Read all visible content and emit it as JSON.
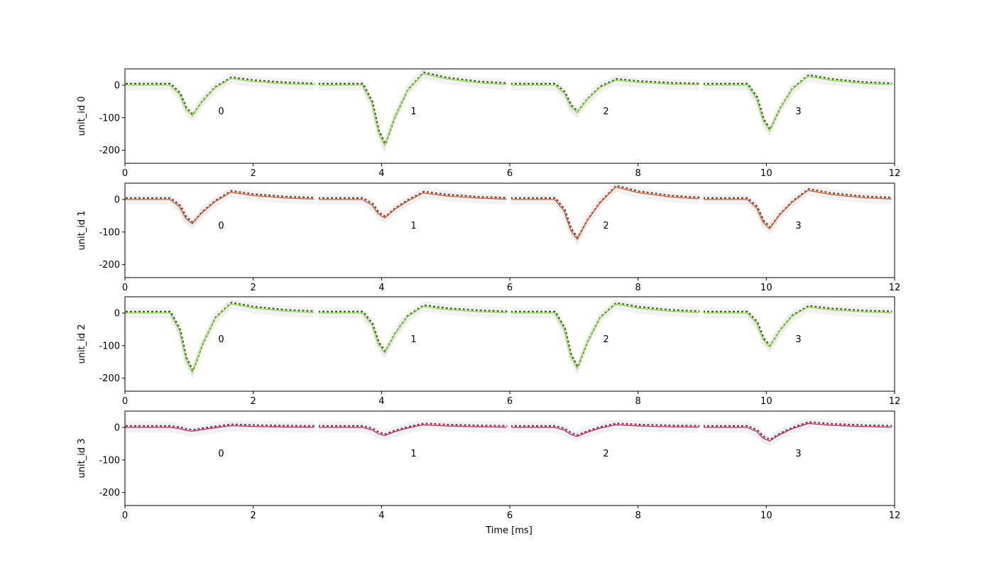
{
  "chart_data": {
    "type": "line",
    "xlabel": "Time [ms]",
    "xlim": [
      0,
      12
    ],
    "ylim": [
      -240,
      50
    ],
    "xticks": [
      0,
      2,
      4,
      6,
      8,
      10,
      12
    ],
    "yticks": [
      0,
      -100,
      -200
    ],
    "channel_labels": [
      "0",
      "1",
      "2",
      "3"
    ],
    "channel_duration_ms": 3,
    "template_time_ms": [
      0.0,
      0.7,
      0.85,
      0.95,
      1.05,
      1.2,
      1.4,
      1.65,
      2.0,
      2.5,
      2.95
    ],
    "background_color": "#d9d9d9",
    "mean_color": "#1a1a1a",
    "panels": [
      {
        "ylabel": "unit_id 0",
        "color": "#7fe22b",
        "channels": [
          {
            "label": "0",
            "trough": -95,
            "peak": 20
          },
          {
            "label": "1",
            "trough": -185,
            "peak": 35
          },
          {
            "label": "2",
            "trough": -85,
            "peak": 15
          },
          {
            "label": "3",
            "trough": -140,
            "peak": 27
          }
        ]
      },
      {
        "ylabel": "unit_id 1",
        "color": "#e8531f",
        "channels": [
          {
            "label": "0",
            "trough": -75,
            "peak": 22
          },
          {
            "label": "1",
            "trough": -57,
            "peak": 20
          },
          {
            "label": "2",
            "trough": -122,
            "peak": 38
          },
          {
            "label": "3",
            "trough": -90,
            "peak": 28
          }
        ]
      },
      {
        "ylabel": "unit_id 2",
        "color": "#7fe22b",
        "channels": [
          {
            "label": "0",
            "trough": -182,
            "peak": 28
          },
          {
            "label": "1",
            "trough": -122,
            "peak": 20
          },
          {
            "label": "2",
            "trough": -170,
            "peak": 27
          },
          {
            "label": "3",
            "trough": -105,
            "peak": 18
          }
        ]
      },
      {
        "ylabel": "unit_id 3",
        "color": "#e8196c",
        "channels": [
          {
            "label": "0",
            "trough": -12,
            "peak": 5
          },
          {
            "label": "1",
            "trough": -25,
            "peak": 8
          },
          {
            "label": "2",
            "trough": -28,
            "peak": 8
          },
          {
            "label": "3",
            "trough": -42,
            "peak": 12
          }
        ]
      }
    ]
  }
}
